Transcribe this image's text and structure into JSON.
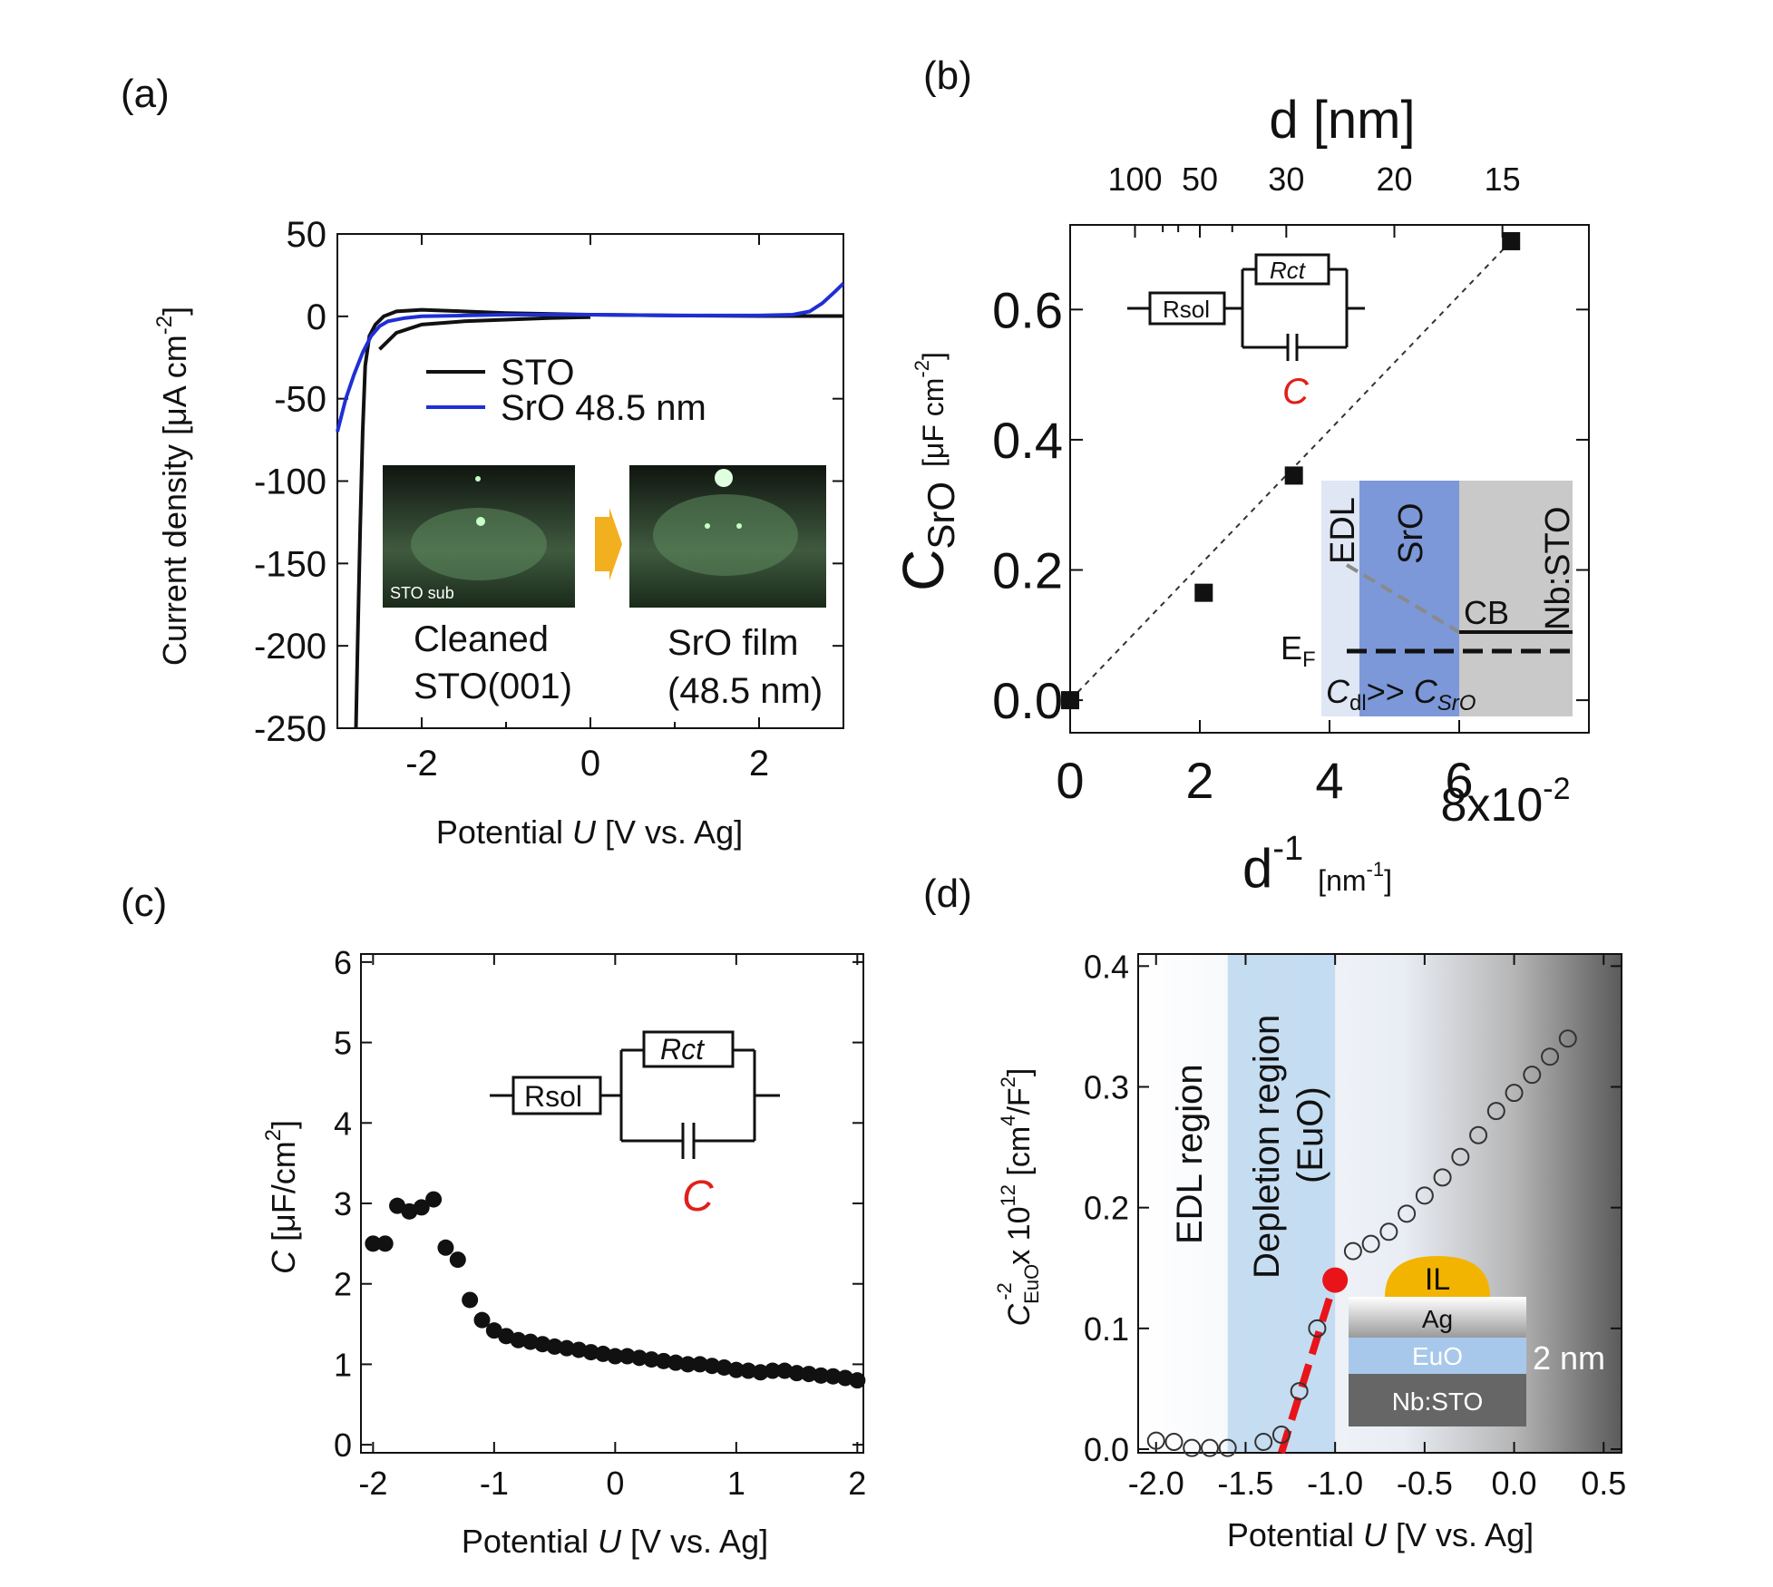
{
  "chart_data": [
    {
      "panel": "(a)",
      "type": "line",
      "xlabel_pre": "Potential ",
      "xlabel_var": "U",
      "xlabel_post": " [V vs. Ag]",
      "ylabel_main": "Current density [μA cm",
      "ylabel_sup": "-2",
      "ylabel_end": "]",
      "xlim": [
        -3,
        3
      ],
      "ylim": [
        -250,
        50
      ],
      "xticks": [
        -2,
        0,
        2
      ],
      "yticks": [
        50,
        0,
        -50,
        -100,
        -150,
        -200,
        -250
      ],
      "series": [
        {
          "name": "STO",
          "color": "#111111",
          "x": [
            -2.78,
            -2.76,
            -2.73,
            -2.7,
            -2.67,
            -2.62,
            -2.55,
            -2.45,
            -2.3,
            -2.0,
            -1.5,
            -1.0,
            0.0,
            1.0,
            2.0,
            3.0
          ],
          "y": [
            -250,
            -200,
            -130,
            -70,
            -30,
            -12,
            -5,
            0,
            3,
            4,
            3,
            2,
            1,
            0.5,
            0.2,
            0.2
          ]
        },
        {
          "name": "STO",
          "color": "#111111",
          "x": [
            -2.5,
            -2.3,
            -2.0,
            -1.5,
            -1.0,
            -0.5,
            0.0
          ],
          "y": [
            -20,
            -10,
            -5,
            -3,
            -2,
            -1,
            -0.5
          ]
        },
        {
          "name": "SrO 48.5 nm",
          "color": "#1f2fd6",
          "x": [
            -3.0,
            -2.9,
            -2.8,
            -2.7,
            -2.6,
            -2.5,
            -2.4,
            -2.2,
            -2.0,
            -1.5,
            -1.0,
            0.0,
            1.0,
            2.0,
            2.4,
            2.6,
            2.75,
            2.9,
            3.0
          ],
          "y": [
            -70,
            -50,
            -35,
            -22,
            -12,
            -6,
            -3,
            -1,
            0,
            0.5,
            1,
            1,
            0.5,
            0.5,
            1,
            3,
            8,
            15,
            20
          ]
        }
      ],
      "legend": [
        {
          "label": "STO",
          "color": "#111111"
        },
        {
          "label": "SrO 48.5 nm",
          "color": "#1f2fd6"
        }
      ],
      "inset_labels": {
        "sto_sub": "STO sub",
        "left_1": "Cleaned",
        "left_2": "STO(001)",
        "right_1": "SrO film",
        "right_2": "(48.5 nm)"
      }
    },
    {
      "panel": "(b)",
      "type": "scatter",
      "top_axis_label": "d [nm]",
      "top_ticks": [
        100,
        50,
        30,
        20,
        15
      ],
      "xlabel_main": "d",
      "xlabel_sup": "-1",
      "xlabel_unit": "[nm",
      "xlabel_unit_sup": "-1",
      "xlabel_unit_end": "]",
      "x_multiplier_label": "8x10",
      "x_multiplier_sup": "-2",
      "ylabel_main": "C",
      "ylabel_sub": "SrO",
      "ylabel_unit": "[μF cm",
      "ylabel_unit_sup": "-2",
      "ylabel_unit_end": "]",
      "xlim": [
        0,
        0.08
      ],
      "ylim": [
        -0.05,
        0.73
      ],
      "xticks": [
        0,
        2,
        4,
        6
      ],
      "yticks": [
        0.0,
        0.2,
        0.4,
        0.6
      ],
      "points": {
        "x": [
          0,
          0.0206,
          0.0345,
          0.068
        ],
        "y": [
          0.0,
          0.165,
          0.345,
          0.705
        ]
      },
      "fit_line": {
        "x": [
          0,
          0.068
        ],
        "y": [
          0.0,
          0.705
        ]
      },
      "circuit": {
        "rsol": "Rsol",
        "rct": "Rct",
        "c": "C"
      },
      "band_diagram": {
        "edl": "EDL",
        "sro": "SrO",
        "nbsto": "Nb:STO",
        "cb": "CB",
        "ef": "E",
        "ef_sub": "F",
        "cdl": "C",
        "cdl_sub": "dl",
        "gg": ">>",
        "csro": "C",
        "csro_sub": "SrO"
      }
    },
    {
      "panel": "(c)",
      "type": "scatter",
      "xlabel_pre": "Potential ",
      "xlabel_var": "U",
      "xlabel_post": " [V vs. Ag]",
      "ylabel_var": "C",
      "ylabel_unit": " [μF/cm",
      "ylabel_sup": "2",
      "ylabel_end": "]",
      "xlim": [
        -2.1,
        2.05
      ],
      "ylim": [
        -0.1,
        6.1
      ],
      "xticks": [
        -2,
        -1,
        0,
        1,
        2
      ],
      "yticks": [
        0,
        1,
        2,
        3,
        4,
        5,
        6
      ],
      "points": {
        "x": [
          -2.0,
          -1.9,
          -1.8,
          -1.7,
          -1.6,
          -1.5,
          -1.4,
          -1.3,
          -1.2,
          -1.1,
          -1.0,
          -0.9,
          -0.8,
          -0.7,
          -0.6,
          -0.5,
          -0.4,
          -0.3,
          -0.2,
          -0.1,
          0.0,
          0.1,
          0.2,
          0.3,
          0.4,
          0.5,
          0.6,
          0.7,
          0.8,
          0.9,
          1.0,
          1.1,
          1.2,
          1.3,
          1.4,
          1.5,
          1.6,
          1.7,
          1.8,
          1.9,
          2.0
        ],
        "y": [
          2.5,
          2.5,
          2.97,
          2.9,
          2.95,
          3.05,
          2.45,
          2.3,
          1.8,
          1.55,
          1.42,
          1.35,
          1.3,
          1.28,
          1.25,
          1.22,
          1.2,
          1.18,
          1.15,
          1.13,
          1.1,
          1.1,
          1.08,
          1.06,
          1.04,
          1.02,
          1.0,
          1.0,
          0.98,
          0.96,
          0.93,
          0.92,
          0.9,
          0.92,
          0.92,
          0.89,
          0.88,
          0.86,
          0.85,
          0.83,
          0.8
        ]
      },
      "circuit": {
        "rsol": "Rsol",
        "rct": "Rct",
        "c": "C"
      }
    },
    {
      "panel": "(d)",
      "type": "scatter",
      "xlabel_pre": "Potential ",
      "xlabel_var": "U",
      "xlabel_post": " [V vs. Ag]",
      "ylabel_var": "C",
      "ylabel_sub": "EuO",
      "ylabel_sup": "-2",
      "ylabel_mid": " x 10",
      "ylabel_sup2": "12",
      "ylabel_unit": " [cm",
      "ylabel_unit_sup": "4",
      "ylabel_unit_mid": "/F",
      "ylabel_unit_sup2": "2",
      "ylabel_unit_end": "]",
      "xlim": [
        -2.1,
        0.6
      ],
      "ylim": [
        -0.003,
        0.41
      ],
      "xticks": [
        -2.0,
        -1.5,
        -1.0,
        -0.5,
        0.0,
        0.5
      ],
      "yticks": [
        0.0,
        0.1,
        0.2,
        0.3,
        0.4
      ],
      "points": {
        "x": [
          -2.0,
          -1.9,
          -1.8,
          -1.7,
          -1.6,
          -1.4,
          -1.3,
          -1.2,
          -1.1,
          -0.9,
          -0.8,
          -0.7,
          -0.6,
          -0.5,
          -0.4,
          -0.3,
          -0.2,
          -0.1,
          0.0,
          0.1,
          0.2,
          0.3
        ],
        "y": [
          0.007,
          0.006,
          0.001,
          0.001,
          0.001,
          0.006,
          0.012,
          0.048,
          0.1,
          0.164,
          0.17,
          0.18,
          0.195,
          0.21,
          0.225,
          0.242,
          0.26,
          0.28,
          0.295,
          0.31,
          0.325,
          0.34
        ]
      },
      "highlight_point": {
        "x": -1.0,
        "y": 0.14
      },
      "fit_line": {
        "x": [
          -1.3,
          -1.0
        ],
        "y": [
          -0.003,
          0.14
        ]
      },
      "regions": {
        "edl": "EDL region",
        "depletion_1": "Depletion region",
        "depletion_2": "(EuO)"
      },
      "layers": {
        "il": "IL",
        "ag": "Ag",
        "euo": "EuO",
        "nbsto": "Nb:STO",
        "thickness": "2 nm"
      }
    }
  ]
}
